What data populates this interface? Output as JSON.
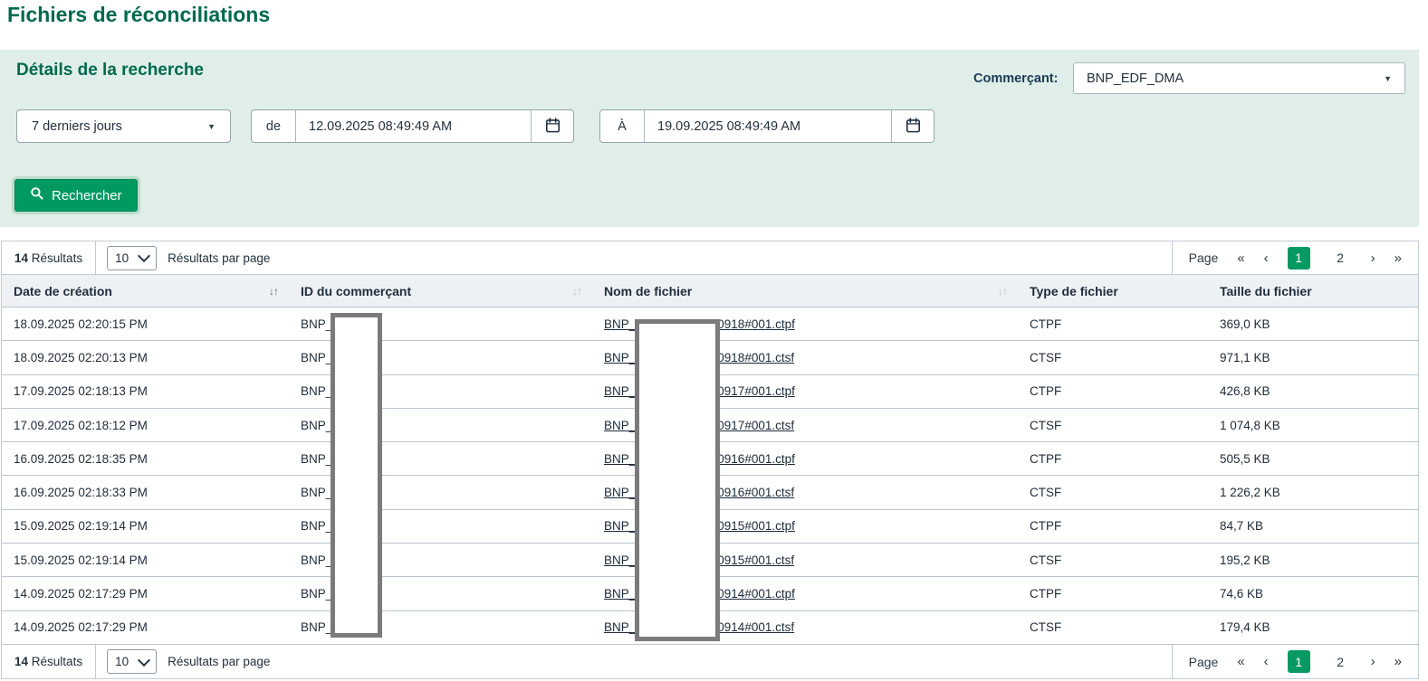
{
  "page": {
    "title": "Fichiers de réconciliations"
  },
  "search": {
    "heading": "Détails de la recherche",
    "merchant_label": "Commerçant:",
    "merchant_value": "BNP_EDF_DMA",
    "period_value": "7 derniers jours",
    "from_label": "de",
    "from_value": "12.09.2025 08:49:49 AM",
    "to_label": "À",
    "to_value": "19.09.2025 08:49:49 AM",
    "search_button_label": "Rechercher"
  },
  "results": {
    "count": "14",
    "count_suffix": "Résultats",
    "per_page_value": "10",
    "per_page_label": "Résultats par page",
    "pagination": {
      "label": "Page",
      "first": "«",
      "prev": "‹",
      "pages": [
        "1",
        "2"
      ],
      "active_page": "1",
      "next": "›",
      "last": "»"
    },
    "columns": [
      "Date de création",
      "ID du commerçant",
      "Nom de fichier",
      "Type de fichier",
      "Taille du fichier"
    ],
    "sort_glyph": "↓↑",
    "rows": [
      {
        "date": "18.09.2025 02:20:15 PM",
        "merchant_prefix": "BNP_",
        "file_prefix": "BNP_",
        "file_suffix": "0918#001.ctpf",
        "type": "CTPF",
        "size": "369,0 KB"
      },
      {
        "date": "18.09.2025 02:20:13 PM",
        "merchant_prefix": "BNP_",
        "file_prefix": "BNP_",
        "file_suffix": "0918#001.ctsf",
        "type": "CTSF",
        "size": "971,1 KB"
      },
      {
        "date": "17.09.2025 02:18:13 PM",
        "merchant_prefix": "BNP_",
        "file_prefix": "BNP_",
        "file_suffix": "0917#001.ctpf",
        "type": "CTPF",
        "size": "426,8 KB"
      },
      {
        "date": "17.09.2025 02:18:12 PM",
        "merchant_prefix": "BNP_",
        "file_prefix": "BNP_",
        "file_suffix": "0917#001.ctsf",
        "type": "CTSF",
        "size": "1 074,8 KB"
      },
      {
        "date": "16.09.2025 02:18:35 PM",
        "merchant_prefix": "BNP_",
        "file_prefix": "BNP_",
        "file_suffix": "0916#001.ctpf",
        "type": "CTPF",
        "size": "505,5 KB"
      },
      {
        "date": "16.09.2025 02:18:33 PM",
        "merchant_prefix": "BNP_",
        "file_prefix": "BNP_",
        "file_suffix": "0916#001.ctsf",
        "type": "CTSF",
        "size": "1 226,2 KB"
      },
      {
        "date": "15.09.2025 02:19:14 PM",
        "merchant_prefix": "BNP_",
        "file_prefix": "BNP_",
        "file_suffix": "0915#001.ctpf",
        "type": "CTPF",
        "size": "84,7 KB"
      },
      {
        "date": "15.09.2025 02:19:14 PM",
        "merchant_prefix": "BNP_",
        "file_prefix": "BNP_",
        "file_suffix": "0915#001.ctsf",
        "type": "CTSF",
        "size": "195,2 KB"
      },
      {
        "date": "14.09.2025 02:17:29 PM",
        "merchant_prefix": "BNP_",
        "file_prefix": "BNP_",
        "file_suffix": "0914#001.ctpf",
        "type": "CTPF",
        "size": "74,6 KB"
      },
      {
        "date": "14.09.2025 02:17:29 PM",
        "merchant_prefix": "BNP_",
        "file_prefix": "BNP_",
        "file_suffix": "0914#001.ctsf",
        "type": "CTSF",
        "size": "179,4 KB"
      }
    ]
  },
  "icons": {
    "search_button": "search-icon",
    "date_fields": "calendar-icon",
    "dropdowns": "caret-down-icon",
    "per_page": "chevron-down-icon",
    "column_headers": "sort-icon"
  },
  "colors": {
    "title_green": "#006a4e",
    "panel_bg": "#dfeee8",
    "button_green": "#009a61",
    "active_page_green": "#069a62",
    "row_separator": "#b9c6d1",
    "redaction_border": "#7b7b7b"
  }
}
